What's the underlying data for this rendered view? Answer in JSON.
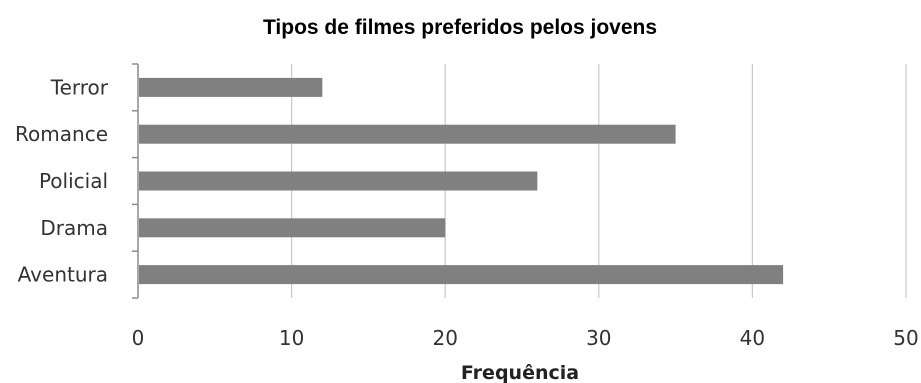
{
  "chart_data": {
    "type": "bar",
    "orientation": "horizontal",
    "title": "Tipos de filmes preferidos pelos jovens",
    "xlabel": "Frequência",
    "ylabel": "",
    "categories": [
      "Terror",
      "Romance",
      "Policial",
      "Drama",
      "Aventura"
    ],
    "values": [
      12,
      35,
      26,
      20,
      42
    ],
    "xlim": [
      0,
      50
    ],
    "x_ticks": [
      "0",
      "10",
      "20",
      "30",
      "40",
      "50"
    ],
    "grid": "vertical",
    "legend": "none",
    "bar_color": "#808080",
    "grid_color": "#c8c8c8",
    "axis_color": "#8c8c8c"
  }
}
